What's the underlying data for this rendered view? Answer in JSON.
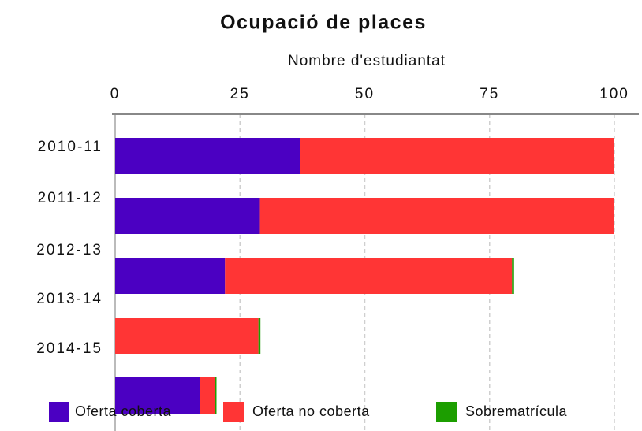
{
  "chart_data": {
    "type": "stacked_barh",
    "title": "Ocupació de places",
    "x_label": "Nombre d'estudiantat",
    "categories": [
      "2010-11",
      "2011-12",
      "2012-13",
      "2013-14",
      "2014-15"
    ],
    "series": [
      {
        "name": "Oferta coberta",
        "color": "#4b00c2",
        "values": [
          37,
          29,
          22,
          0,
          17
        ]
      },
      {
        "name": "Oferta no coberta",
        "color": "#ff3535",
        "values": [
          63,
          71,
          57.5,
          28.7,
          3
        ]
      },
      {
        "name": "Sobrematrícula",
        "color": "#1c9e00",
        "values": [
          0,
          0,
          0.4,
          0.4,
          0.3
        ]
      }
    ],
    "xlim": [
      0,
      100
    ],
    "xticks": [
      0,
      25,
      50,
      75,
      100
    ],
    "grid": true,
    "legend": "bottom"
  }
}
